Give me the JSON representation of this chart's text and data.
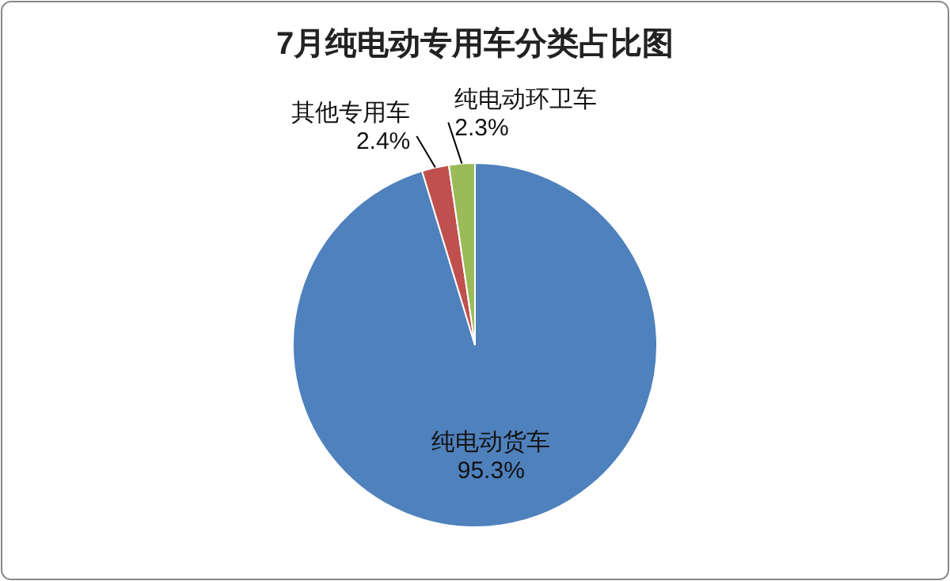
{
  "chart_data": {
    "type": "pie",
    "title": "7月纯电动专用车分类占比图",
    "categories": [
      "纯电动货车",
      "其他专用车",
      "纯电动环卫车"
    ],
    "values": [
      95.3,
      2.4,
      2.3
    ],
    "colors": [
      "#4f81bd",
      "#c0504d",
      "#9bbb59"
    ],
    "value_labels": [
      "95.3%",
      "2.4%",
      "2.3%"
    ]
  }
}
